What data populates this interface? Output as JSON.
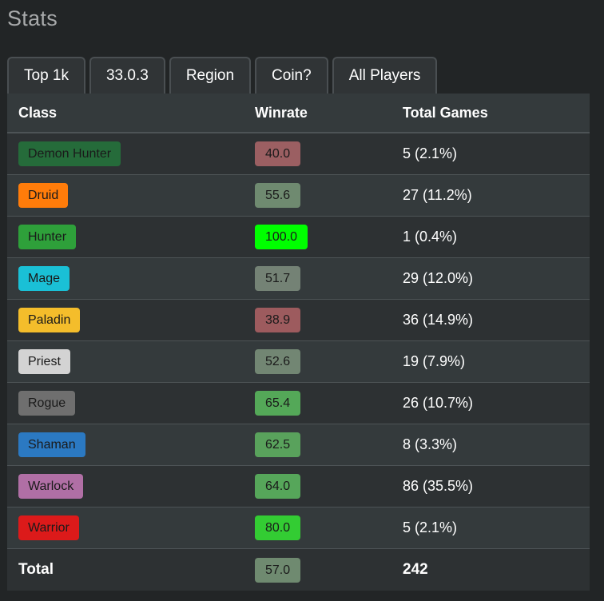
{
  "page": {
    "title": "Stats"
  },
  "filters": [
    {
      "label": "Top 1k"
    },
    {
      "label": "33.0.3"
    },
    {
      "label": "Region"
    },
    {
      "label": "Coin?"
    },
    {
      "label": "All Players"
    }
  ],
  "table": {
    "headers": {
      "class": "Class",
      "winrate": "Winrate",
      "games": "Total Games"
    },
    "rows": [
      {
        "class": "Demon Hunter",
        "class_color": "#256b3a",
        "class_text": "#1a1a1a",
        "winrate": "40.0",
        "win_color": "#9b5f62",
        "games": "5 (2.1%)"
      },
      {
        "class": "Druid",
        "class_color": "#ff7c0a",
        "class_text": "#1a1a1a",
        "winrate": "55.6",
        "win_color": "#6f8a70",
        "games": "27 (11.2%)"
      },
      {
        "class": "Hunter",
        "class_color": "#2ea03a",
        "class_text": "#1a1a1a",
        "winrate": "100.0",
        "win_color": "#00ff00",
        "games": "1 (0.4%)"
      },
      {
        "class": "Mage",
        "class_color": "#1ac0d6",
        "class_text": "#1a1a1a",
        "winrate": "51.7",
        "win_color": "#748275",
        "games": "29 (12.0%)"
      },
      {
        "class": "Paladin",
        "class_color": "#f4bd2b",
        "class_text": "#1a1a1a",
        "winrate": "38.9",
        "win_color": "#9d5b5e",
        "games": "36 (14.9%)"
      },
      {
        "class": "Priest",
        "class_color": "#d3d3d3",
        "class_text": "#1a1a1a",
        "winrate": "52.6",
        "win_color": "#728673",
        "games": "19 (7.9%)"
      },
      {
        "class": "Rogue",
        "class_color": "#6f6f6f",
        "class_text": "#1a1a1a",
        "winrate": "65.4",
        "win_color": "#54a858",
        "games": "26 (10.7%)"
      },
      {
        "class": "Shaman",
        "class_color": "#2b79c2",
        "class_text": "#1a1a1a",
        "winrate": "62.5",
        "win_color": "#59a25c",
        "games": "8 (3.3%)"
      },
      {
        "class": "Warlock",
        "class_color": "#b06fa5",
        "class_text": "#1a1a1a",
        "winrate": "64.0",
        "win_color": "#56a65a",
        "games": "86 (35.5%)"
      },
      {
        "class": "Warrior",
        "class_color": "#dc1a1a",
        "class_text": "#1a1a1a",
        "winrate": "80.0",
        "win_color": "#33cc33",
        "games": "5 (2.1%)"
      }
    ],
    "total": {
      "label": "Total",
      "winrate": "57.0",
      "win_color": "#6f8a70",
      "games": "242"
    }
  }
}
